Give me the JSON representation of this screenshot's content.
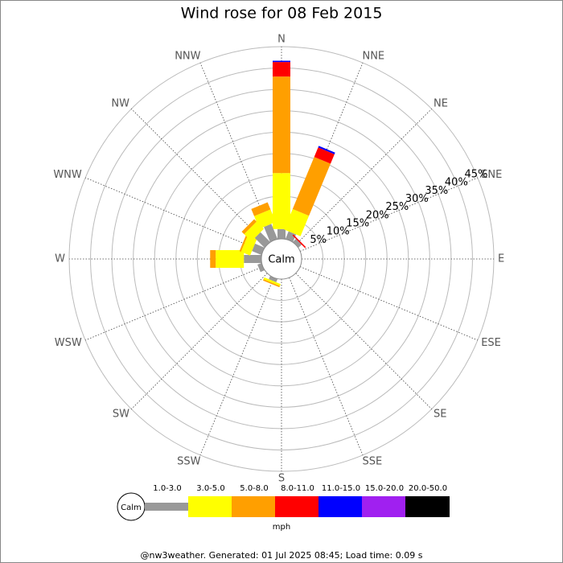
{
  "chart_data": {
    "type": "windrose",
    "title": "Wind rose for 08 Feb 2015",
    "categories": [
      "N",
      "NNE",
      "NE",
      "ENE",
      "E",
      "ESE",
      "SE",
      "SSE",
      "S",
      "SSW",
      "SW",
      "WSW",
      "W",
      "WNW",
      "NW",
      "NNW"
    ],
    "calm_label": "Calm",
    "unit_label": "mph",
    "footer": "@nw3weather.  Generated: 01 Jul 2025 08:45; Load time: 0.09 s",
    "ylim": [
      0,
      45
    ],
    "yticks": [
      {
        "value": 5,
        "label": "5%"
      },
      {
        "value": 10,
        "label": "10%"
      },
      {
        "value": 15,
        "label": "15%"
      },
      {
        "value": 20,
        "label": "20%"
      },
      {
        "value": 25,
        "label": "25%"
      },
      {
        "value": 30,
        "label": "30%"
      },
      {
        "value": 35,
        "label": "35%"
      },
      {
        "value": 40,
        "label": "40%"
      },
      {
        "value": 45,
        "label": "45%"
      }
    ],
    "grid": true,
    "series": [
      {
        "name": "1.0-3.0",
        "color": "#999999",
        "values": [
          2.3,
          1.9,
          1.0,
          0,
          0,
          0,
          0,
          0,
          0,
          0.8,
          0,
          1.0,
          4.1,
          2.4,
          3.2,
          3.8
        ]
      },
      {
        "name": "3.0-5.0",
        "color": "#ffff00",
        "values": [
          13.1,
          5.2,
          0,
          0,
          0,
          0,
          0,
          0,
          0,
          0.5,
          0,
          0,
          6.6,
          2.3,
          2.4,
          3.2
        ]
      },
      {
        "name": "5.0-8.0",
        "color": "#ff9f00",
        "values": [
          22.6,
          13.2,
          0,
          0,
          0,
          0,
          0,
          0,
          0,
          0.3,
          0,
          0,
          1.3,
          0.4,
          0.8,
          1.8
        ]
      },
      {
        "name": "8.0-11.0",
        "color": "#ff0000",
        "values": [
          3.4,
          2.4,
          0.3,
          0,
          0,
          0,
          0,
          0,
          0,
          0,
          0,
          0,
          0,
          0,
          0,
          0
        ]
      },
      {
        "name": "11.0-15.0",
        "color": "#0000ff",
        "values": [
          0.3,
          0.4,
          0,
          0,
          0,
          0,
          0,
          0,
          0,
          0,
          0,
          0,
          0,
          0,
          0,
          0
        ]
      },
      {
        "name": "15.0-20.0",
        "color": "#a020f0",
        "values": [
          0,
          0,
          0,
          0,
          0,
          0,
          0,
          0,
          0,
          0,
          0,
          0,
          0,
          0,
          0,
          0
        ]
      },
      {
        "name": "20.0-50.0",
        "color": "#000000",
        "values": [
          0,
          0,
          0,
          0,
          0,
          0,
          0,
          0,
          0,
          0,
          0,
          0,
          0,
          0,
          0,
          0
        ]
      }
    ]
  }
}
